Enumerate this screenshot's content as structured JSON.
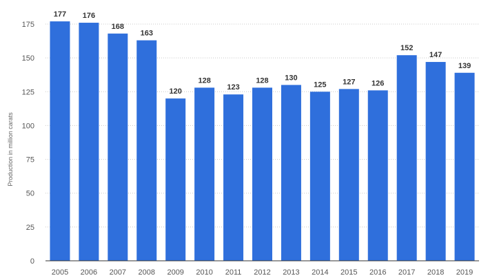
{
  "chart_data": {
    "type": "bar",
    "categories": [
      "2005",
      "2006",
      "2007",
      "2008",
      "2009",
      "2010",
      "2011",
      "2012",
      "2013",
      "2014",
      "2015",
      "2016",
      "2017",
      "2018",
      "2019"
    ],
    "values": [
      177,
      176,
      168,
      163,
      120,
      128,
      123,
      128,
      130,
      125,
      127,
      126,
      152,
      147,
      139
    ],
    "ylabel": "Production in million carats",
    "xlabel": "",
    "ylim": [
      0,
      175
    ],
    "yticks": [
      0,
      25,
      50,
      75,
      100,
      125,
      150,
      175
    ],
    "grid": true,
    "bar_color": "#2f6fdc"
  }
}
